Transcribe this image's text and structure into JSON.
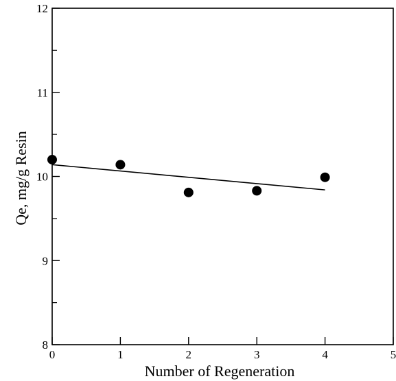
{
  "chart_data": {
    "type": "scatter",
    "title": "",
    "xlabel": "Number of Regeneration",
    "ylabel": "Qe,  mg/g Resin",
    "xlim": [
      0,
      5
    ],
    "ylim": [
      8,
      12
    ],
    "x_ticks": [
      0,
      1,
      2,
      3,
      4,
      5
    ],
    "y_ticks": [
      8,
      9,
      10,
      11,
      12
    ],
    "x_tick_labels": [
      "0",
      "1",
      "2",
      "3",
      "4",
      "5"
    ],
    "y_tick_labels": [
      "8",
      "9",
      "10",
      "11",
      "12"
    ],
    "grid": false,
    "legend": "none",
    "series": [
      {
        "type": "scatter",
        "x": [
          0,
          1,
          2,
          3,
          4
        ],
        "y": [
          10.2,
          10.14,
          9.81,
          9.83,
          9.99
        ]
      },
      {
        "type": "line",
        "x": [
          0,
          4
        ],
        "y": [
          10.14,
          9.84
        ]
      }
    ],
    "colors": {
      "marker": "#000000",
      "line": "#000000",
      "axes": "#000000"
    }
  }
}
